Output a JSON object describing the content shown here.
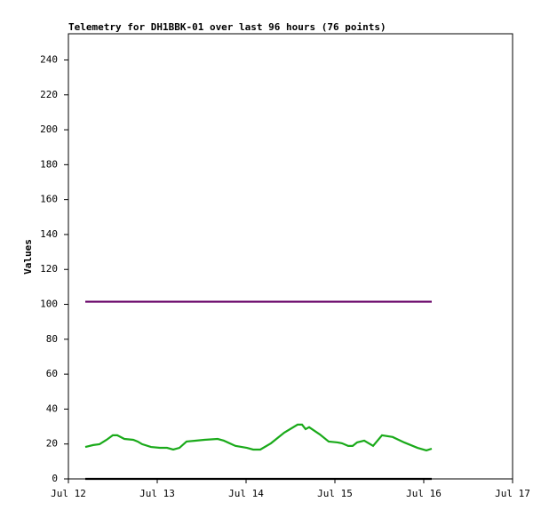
{
  "chart_data": {
    "type": "line",
    "title": "Telemetry for DH1BBK-01 over last 96 hours (76 points)",
    "y_label": "Values",
    "xlim": [
      12,
      17
    ],
    "xticks": [
      {
        "value": 12,
        "label": "Jul 12"
      },
      {
        "value": 13,
        "label": "Jul 13"
      },
      {
        "value": 14,
        "label": "Jul 14"
      },
      {
        "value": 15,
        "label": "Jul 15"
      },
      {
        "value": 16,
        "label": "Jul 16"
      },
      {
        "value": 17,
        "label": "Jul 17"
      }
    ],
    "ylim": [
      0,
      255
    ],
    "yticks": [
      0,
      20,
      40,
      60,
      80,
      100,
      120,
      140,
      160,
      180,
      200,
      220,
      240
    ],
    "series": [
      {
        "color": "#660066",
        "x": [
          12.19,
          16.09
        ],
        "values": [
          101.5,
          101.5
        ]
      },
      {
        "color": "#1aaa1a",
        "x": [
          12.19,
          12.28,
          12.35,
          12.43,
          12.5,
          12.55,
          12.63,
          12.73,
          12.78,
          12.83,
          12.93,
          13.03,
          13.11,
          13.18,
          13.25,
          13.33,
          13.43,
          13.53,
          13.68,
          13.75,
          13.88,
          14.01,
          14.08,
          14.16,
          14.28,
          14.43,
          14.58,
          14.63,
          14.67,
          14.71,
          14.83,
          14.93,
          15.03,
          15.08,
          15.15,
          15.2,
          15.25,
          15.33,
          15.43,
          15.53,
          15.65,
          15.78,
          15.93,
          16.03,
          16.09
        ],
        "values": [
          18.3,
          19.4,
          19.9,
          22.4,
          25,
          25,
          22.9,
          22.4,
          21.4,
          19.9,
          18.3,
          17.8,
          17.8,
          16.8,
          17.8,
          21.4,
          21.9,
          22.4,
          22.9,
          21.9,
          18.9,
          17.8,
          16.8,
          16.8,
          20.4,
          26.5,
          31.1,
          31.1,
          28.5,
          29.6,
          25.5,
          21.4,
          20.9,
          20.4,
          18.9,
          18.9,
          20.9,
          21.9,
          18.9,
          25,
          24,
          20.9,
          17.8,
          16.3,
          17.3
        ]
      },
      {
        "color": "#000000",
        "x": [
          12.19,
          16.09
        ],
        "values": [
          0,
          0
        ]
      }
    ]
  }
}
